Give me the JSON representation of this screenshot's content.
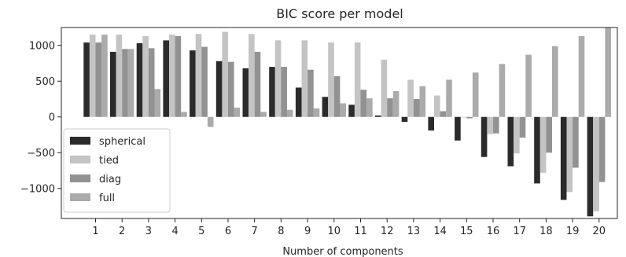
{
  "chart_data": {
    "type": "bar",
    "title": "BIC score per model",
    "xlabel": "Number of components",
    "ylabel": "",
    "categories": [
      "1",
      "2",
      "3",
      "4",
      "5",
      "6",
      "7",
      "8",
      "9",
      "10",
      "11",
      "12",
      "13",
      "14",
      "15",
      "16",
      "17",
      "18",
      "19",
      "20"
    ],
    "ylim": [
      -1420,
      1250
    ],
    "yticks": [
      -1000,
      -500,
      0,
      500,
      1000
    ],
    "yticks_labels": [
      "−1000",
      "−500",
      "0",
      "500",
      "1000"
    ],
    "grid": false,
    "legend_position": "lower-left",
    "series": [
      {
        "name": "spherical",
        "color": "#2b2b2b",
        "values": [
          1040,
          910,
          1030,
          1070,
          930,
          780,
          680,
          700,
          410,
          280,
          170,
          20,
          -70,
          -190,
          -330,
          -560,
          -690,
          -930,
          -1160,
          -1390
        ]
      },
      {
        "name": "tied",
        "color": "#c4c4c4",
        "values": [
          1150,
          1150,
          1130,
          1150,
          1160,
          1190,
          1160,
          1070,
          1070,
          1040,
          1040,
          800,
          520,
          300,
          0,
          -240,
          -510,
          -780,
          -1050,
          -1320
        ]
      },
      {
        "name": "diag",
        "color": "#929292",
        "values": [
          1040,
          950,
          960,
          1130,
          980,
          770,
          910,
          700,
          660,
          570,
          380,
          260,
          250,
          80,
          -20,
          -230,
          -290,
          -500,
          -710,
          -910
        ]
      },
      {
        "name": "full",
        "color": "#ababab",
        "values": [
          1150,
          950,
          390,
          70,
          -140,
          130,
          70,
          100,
          120,
          190,
          260,
          360,
          430,
          520,
          620,
          740,
          870,
          990,
          1130,
          1250
        ]
      }
    ]
  }
}
